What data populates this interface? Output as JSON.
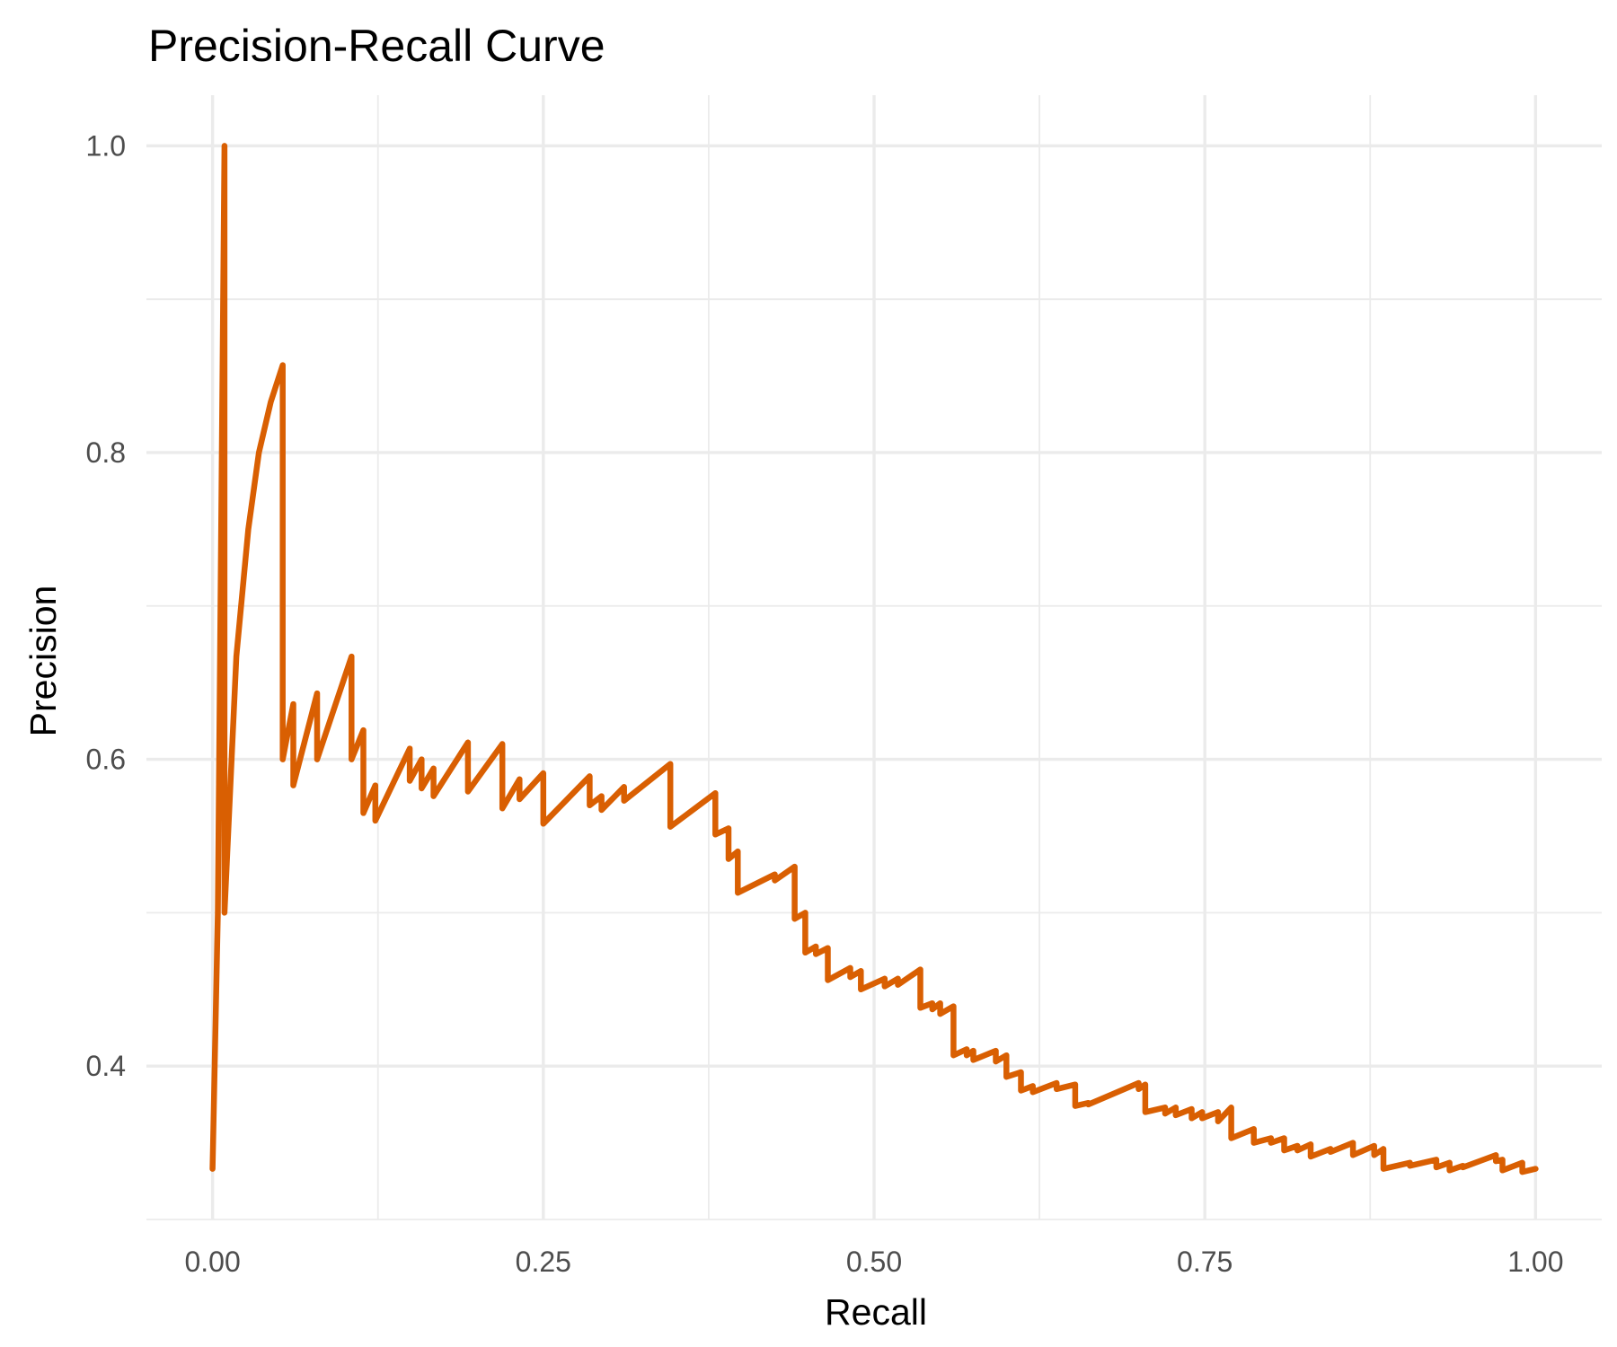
{
  "chart_data": {
    "type": "line",
    "title": "Precision-Recall Curve",
    "xlabel": "Recall",
    "ylabel": "Precision",
    "xlim": [
      -0.05,
      1.05
    ],
    "ylim": [
      0.3,
      1.033
    ],
    "x_ticks": [
      0.0,
      0.25,
      0.5,
      0.75,
      1.0
    ],
    "x_tick_labels": [
      "0.00",
      "0.25",
      "0.50",
      "0.75",
      "1.00"
    ],
    "y_ticks": [
      0.4,
      0.6,
      0.8,
      1.0
    ],
    "y_tick_labels": [
      "0.4",
      "0.6",
      "0.8",
      "1.0"
    ],
    "x_minor": [
      0.125,
      0.375,
      0.625,
      0.875
    ],
    "y_minor": [
      0.3,
      0.5,
      0.7,
      0.9
    ],
    "grid": true,
    "legend": "none",
    "series": [
      {
        "color": "#d95f02",
        "points": [
          [
            0.0,
            0.333
          ],
          [
            0.004,
            0.5
          ],
          [
            0.009,
            1.0
          ],
          [
            0.009,
            0.5
          ],
          [
            0.018,
            0.667
          ],
          [
            0.027,
            0.75
          ],
          [
            0.035,
            0.8
          ],
          [
            0.044,
            0.833
          ],
          [
            0.053,
            0.857
          ],
          [
            0.053,
            0.6
          ],
          [
            0.061,
            0.636
          ],
          [
            0.061,
            0.583
          ],
          [
            0.079,
            0.643
          ],
          [
            0.079,
            0.6
          ],
          [
            0.105,
            0.667
          ],
          [
            0.105,
            0.6
          ],
          [
            0.114,
            0.619
          ],
          [
            0.114,
            0.565
          ],
          [
            0.123,
            0.583
          ],
          [
            0.123,
            0.56
          ],
          [
            0.149,
            0.607
          ],
          [
            0.149,
            0.586
          ],
          [
            0.158,
            0.6
          ],
          [
            0.158,
            0.581
          ],
          [
            0.167,
            0.594
          ],
          [
            0.167,
            0.576
          ],
          [
            0.193,
            0.611
          ],
          [
            0.193,
            0.579
          ],
          [
            0.219,
            0.61
          ],
          [
            0.219,
            0.568
          ],
          [
            0.232,
            0.587
          ],
          [
            0.232,
            0.574
          ],
          [
            0.25,
            0.591
          ],
          [
            0.25,
            0.558
          ],
          [
            0.285,
            0.589
          ],
          [
            0.285,
            0.57
          ],
          [
            0.294,
            0.576
          ],
          [
            0.294,
            0.567
          ],
          [
            0.311,
            0.582
          ],
          [
            0.311,
            0.573
          ],
          [
            0.346,
            0.597
          ],
          [
            0.346,
            0.556
          ],
          [
            0.38,
            0.578
          ],
          [
            0.38,
            0.551
          ],
          [
            0.39,
            0.555
          ],
          [
            0.39,
            0.535
          ],
          [
            0.397,
            0.54
          ],
          [
            0.397,
            0.513
          ],
          [
            0.425,
            0.525
          ],
          [
            0.425,
            0.521
          ],
          [
            0.44,
            0.53
          ],
          [
            0.44,
            0.496
          ],
          [
            0.448,
            0.5
          ],
          [
            0.448,
            0.474
          ],
          [
            0.456,
            0.478
          ],
          [
            0.456,
            0.473
          ],
          [
            0.465,
            0.477
          ],
          [
            0.465,
            0.456
          ],
          [
            0.482,
            0.464
          ],
          [
            0.482,
            0.458
          ],
          [
            0.49,
            0.462
          ],
          [
            0.49,
            0.45
          ],
          [
            0.508,
            0.457
          ],
          [
            0.508,
            0.452
          ],
          [
            0.518,
            0.457
          ],
          [
            0.518,
            0.453
          ],
          [
            0.535,
            0.463
          ],
          [
            0.535,
            0.438
          ],
          [
            0.544,
            0.441
          ],
          [
            0.544,
            0.437
          ],
          [
            0.55,
            0.441
          ],
          [
            0.55,
            0.434
          ],
          [
            0.56,
            0.439
          ],
          [
            0.56,
            0.407
          ],
          [
            0.57,
            0.411
          ],
          [
            0.57,
            0.407
          ],
          [
            0.575,
            0.41
          ],
          [
            0.575,
            0.404
          ],
          [
            0.592,
            0.41
          ],
          [
            0.592,
            0.403
          ],
          [
            0.6,
            0.407
          ],
          [
            0.6,
            0.393
          ],
          [
            0.611,
            0.396
          ],
          [
            0.611,
            0.384
          ],
          [
            0.62,
            0.387
          ],
          [
            0.62,
            0.383
          ],
          [
            0.638,
            0.389
          ],
          [
            0.638,
            0.385
          ],
          [
            0.652,
            0.388
          ],
          [
            0.652,
            0.374
          ],
          [
            0.662,
            0.376
          ],
          [
            0.662,
            0.375
          ],
          [
            0.7,
            0.389
          ],
          [
            0.7,
            0.385
          ],
          [
            0.705,
            0.388
          ],
          [
            0.705,
            0.37
          ],
          [
            0.72,
            0.373
          ],
          [
            0.72,
            0.369
          ],
          [
            0.728,
            0.373
          ],
          [
            0.728,
            0.368
          ],
          [
            0.74,
            0.372
          ],
          [
            0.74,
            0.366
          ],
          [
            0.748,
            0.37
          ],
          [
            0.748,
            0.366
          ],
          [
            0.76,
            0.37
          ],
          [
            0.76,
            0.364
          ],
          [
            0.77,
            0.373
          ],
          [
            0.77,
            0.353
          ],
          [
            0.787,
            0.359
          ],
          [
            0.787,
            0.35
          ],
          [
            0.8,
            0.353
          ],
          [
            0.8,
            0.35
          ],
          [
            0.81,
            0.353
          ],
          [
            0.81,
            0.345
          ],
          [
            0.82,
            0.348
          ],
          [
            0.82,
            0.345
          ],
          [
            0.83,
            0.349
          ],
          [
            0.83,
            0.341
          ],
          [
            0.845,
            0.346
          ],
          [
            0.845,
            0.344
          ],
          [
            0.862,
            0.35
          ],
          [
            0.862,
            0.342
          ],
          [
            0.878,
            0.348
          ],
          [
            0.878,
            0.342
          ],
          [
            0.885,
            0.346
          ],
          [
            0.885,
            0.333
          ],
          [
            0.905,
            0.337
          ],
          [
            0.905,
            0.335
          ],
          [
            0.925,
            0.339
          ],
          [
            0.925,
            0.334
          ],
          [
            0.935,
            0.337
          ],
          [
            0.935,
            0.332
          ],
          [
            0.945,
            0.335
          ],
          [
            0.945,
            0.334
          ],
          [
            0.97,
            0.342
          ],
          [
            0.97,
            0.338
          ],
          [
            0.975,
            0.339
          ],
          [
            0.975,
            0.332
          ],
          [
            0.99,
            0.337
          ],
          [
            0.99,
            0.331
          ],
          [
            1.0,
            0.333
          ]
        ]
      }
    ]
  }
}
